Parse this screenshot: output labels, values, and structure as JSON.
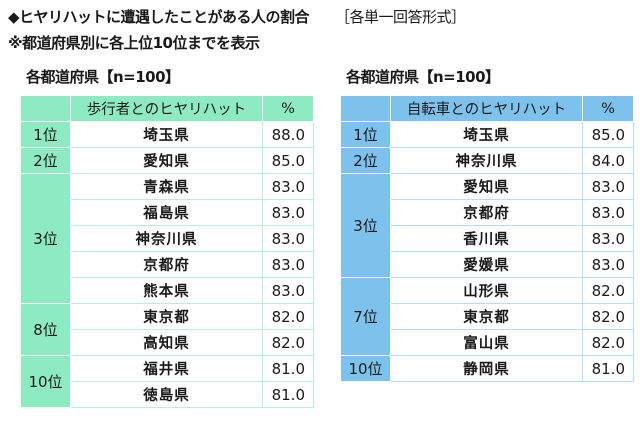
{
  "header": {
    "title": "◆ヒヤリハットに遭遇したことがある人の割合",
    "format": "［各単一回答形式］",
    "note": "※都道府県別に各上位10位までを表示"
  },
  "colors": {
    "pedestrian_accent": "#8EEBC1",
    "bicycle_accent": "#7DC2EC"
  },
  "pedestrian": {
    "subhead": "各都道府県【n=100】",
    "col_name": "歩行者とのヒヤリハット",
    "col_pct": "%",
    "groups": [
      {
        "rank": "1位",
        "rows": [
          {
            "name": "埼玉県",
            "pct": "88.0"
          }
        ]
      },
      {
        "rank": "2位",
        "rows": [
          {
            "name": "愛知県",
            "pct": "85.0"
          }
        ]
      },
      {
        "rank": "3位",
        "rows": [
          {
            "name": "青森県",
            "pct": "83.0"
          },
          {
            "name": "福島県",
            "pct": "83.0"
          },
          {
            "name": "神奈川県",
            "pct": "83.0"
          },
          {
            "name": "京都府",
            "pct": "83.0"
          },
          {
            "name": "熊本県",
            "pct": "83.0"
          }
        ]
      },
      {
        "rank": "8位",
        "rows": [
          {
            "name": "東京都",
            "pct": "82.0"
          },
          {
            "name": "高知県",
            "pct": "82.0"
          }
        ]
      },
      {
        "rank": "10位",
        "rows": [
          {
            "name": "福井県",
            "pct": "81.0"
          },
          {
            "name": "徳島県",
            "pct": "81.0"
          }
        ]
      }
    ]
  },
  "bicycle": {
    "subhead": "各都道府県【n=100】",
    "col_name": "自転車とのヒヤリハット",
    "col_pct": "%",
    "groups": [
      {
        "rank": "1位",
        "rows": [
          {
            "name": "埼玉県",
            "pct": "85.0"
          }
        ]
      },
      {
        "rank": "2位",
        "rows": [
          {
            "name": "神奈川県",
            "pct": "84.0"
          }
        ]
      },
      {
        "rank": "3位",
        "rows": [
          {
            "name": "愛知県",
            "pct": "83.0"
          },
          {
            "name": "京都府",
            "pct": "83.0"
          },
          {
            "name": "香川県",
            "pct": "83.0"
          },
          {
            "name": "愛媛県",
            "pct": "83.0"
          }
        ]
      },
      {
        "rank": "7位",
        "rows": [
          {
            "name": "山形県",
            "pct": "82.0"
          },
          {
            "name": "東京都",
            "pct": "82.0"
          },
          {
            "name": "富山県",
            "pct": "82.0"
          }
        ]
      },
      {
        "rank": "10位",
        "rows": [
          {
            "name": "静岡県",
            "pct": "81.0"
          }
        ]
      }
    ]
  }
}
